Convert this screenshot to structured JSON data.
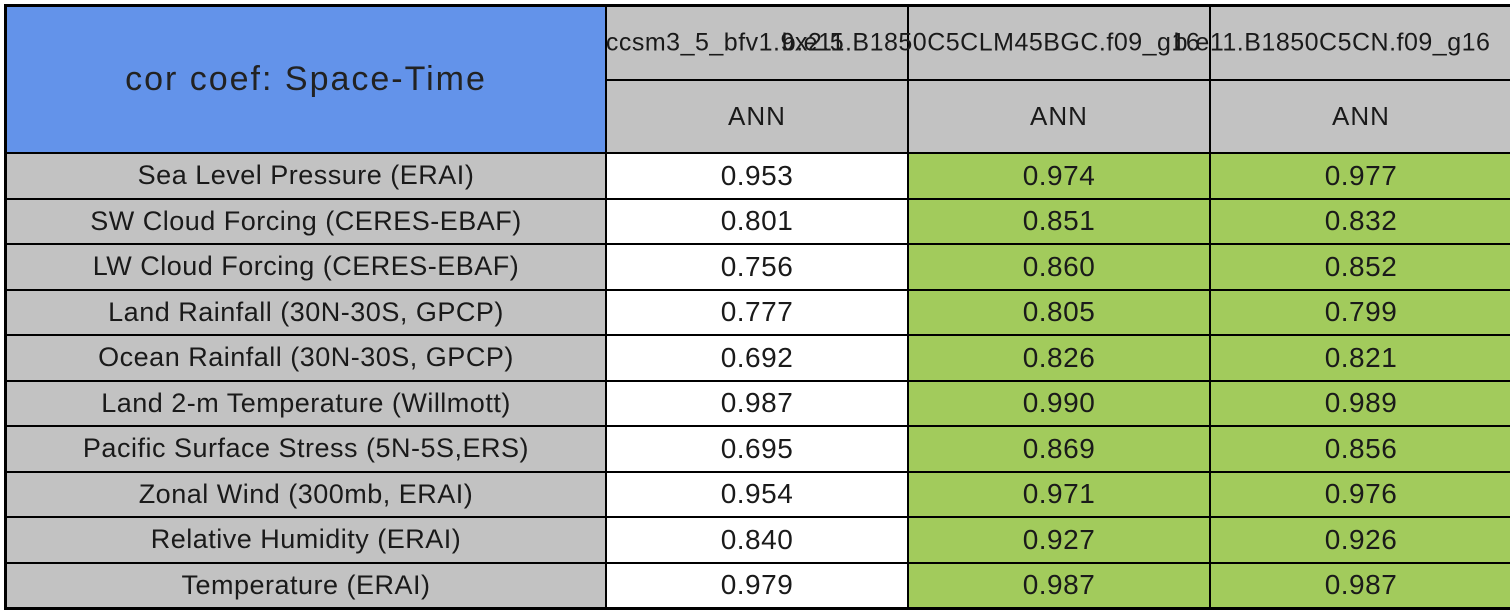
{
  "chart_data": {
    "type": "table",
    "title": "cor coef: Space-Time",
    "subtitle": "",
    "statistic": "spatial-temporal correlation coefficient, annual mean",
    "columns": [
      {
        "model": "ccsm3_5_bfv1.9x2.5",
        "season": "ANN"
      },
      {
        "model": "b.e11.B1850C5CLM45BGC.f09_g16",
        "season": "ANN"
      },
      {
        "model": "b.e11.B1850C5CN.f09_g16",
        "season": "ANN"
      }
    ],
    "rows": [
      {
        "label": "Sea Level Pressure (ERAI)",
        "values": [
          "0.953",
          "0.974",
          "0.977"
        ]
      },
      {
        "label": "SW Cloud Forcing (CERES-EBAF)",
        "values": [
          "0.801",
          "0.851",
          "0.832"
        ]
      },
      {
        "label": "LW Cloud Forcing (CERES-EBAF)",
        "values": [
          "0.756",
          "0.860",
          "0.852"
        ]
      },
      {
        "label": "Land Rainfall (30N-30S, GPCP)",
        "values": [
          "0.777",
          "0.805",
          "0.799"
        ]
      },
      {
        "label": "Ocean Rainfall (30N-30S, GPCP)",
        "values": [
          "0.692",
          "0.826",
          "0.821"
        ]
      },
      {
        "label": "Land 2-m Temperature (Willmott)",
        "values": [
          "0.987",
          "0.990",
          "0.989"
        ]
      },
      {
        "label": "Pacific Surface Stress (5N-5S,ERS)",
        "values": [
          "0.695",
          "0.869",
          "0.856"
        ]
      },
      {
        "label": "Zonal Wind (300mb, ERAI)",
        "values": [
          "0.954",
          "0.971",
          "0.976"
        ]
      },
      {
        "label": "Relative Humidity (ERAI)",
        "values": [
          "0.840",
          "0.927",
          "0.926"
        ]
      },
      {
        "label": "Temperature (ERAI)",
        "values": [
          "0.979",
          "0.987",
          "0.987"
        ]
      }
    ],
    "colors": {
      "title_bg": "#6393ea",
      "header_bg": "#c2c2c2",
      "label_bg": "#c2c2c2",
      "col1_values_bg": "#ffffff",
      "col2_values_bg": "#a2cb5c",
      "col3_values_bg": "#a2cb5c",
      "border": "#000000",
      "text": "#1a1a1a"
    },
    "layout": {
      "grid": "full black cell borders",
      "legend": "none",
      "header_rows": 2,
      "data_rows": 10,
      "data_columns": 3
    }
  }
}
